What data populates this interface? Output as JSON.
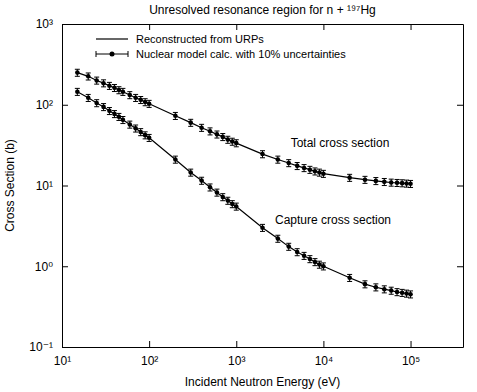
{
  "chart_data": {
    "type": "line",
    "title": "Unresolved resonance region for n + ¹⁹⁷Hg",
    "x_label": "Incident Neutron Energy (eV)",
    "y_label": "Cross Section (b)",
    "log": true,
    "grid": false,
    "legend": "top-left",
    "legend_items": [
      {
        "label": "Reconstructed from URPs",
        "type": "line",
        "line_style": "solid",
        "color": "#000000"
      },
      {
        "label": "Nuclear model calc. with 10% uncertainties",
        "type": "scatter",
        "marker": "circle",
        "color": "#000000"
      }
    ],
    "xlim": [
      10,
      400000
    ],
    "ylim": [
      0.1,
      1000
    ],
    "xticks": [
      {
        "value": 10,
        "label": "10¹"
      },
      {
        "value": 100,
        "label": "10²"
      },
      {
        "value": 1000,
        "label": "10³"
      },
      {
        "value": 10000,
        "label": "10⁴"
      },
      {
        "value": 100000,
        "label": "10⁵"
      }
    ],
    "yticks": [
      {
        "value": 0.1,
        "label": "10⁻¹"
      },
      {
        "value": 1,
        "label": "10⁰"
      },
      {
        "value": 10,
        "label": "10¹"
      },
      {
        "value": 100,
        "label": "10²"
      },
      {
        "value": 1000,
        "label": "10³"
      }
    ],
    "series": [
      {
        "name": "Total cross section",
        "color": "#000000",
        "marker": "circle",
        "line_style": "solid",
        "x": [
          15,
          20,
          25,
          30,
          35,
          40,
          45,
          50,
          60,
          70,
          80,
          90,
          100,
          200,
          300,
          400,
          500,
          600,
          700,
          800,
          900,
          1000,
          2000,
          3000,
          4000,
          5000,
          6000,
          7000,
          8000,
          9000,
          10000,
          20000,
          30000,
          40000,
          50000,
          60000,
          70000,
          80000,
          90000,
          100000
        ],
        "values": [
          250,
          225,
          200,
          185,
          172,
          162,
          152,
          145,
          132,
          122,
          115,
          108,
          103,
          73,
          60,
          52,
          47,
          43,
          40,
          37,
          35,
          33.5,
          24.5,
          21,
          19,
          17.5,
          16.5,
          15.7,
          15,
          14.5,
          14,
          12.5,
          11.8,
          11.4,
          11.1,
          10.9,
          10.8,
          10.7,
          10.6,
          10.5
        ],
        "errors": [
          25,
          22.5,
          20,
          18.5,
          17.2,
          16.2,
          15.2,
          14.5,
          13.2,
          12.2,
          11.5,
          10.8,
          10.3,
          7.3,
          6,
          5.2,
          4.7,
          4.3,
          4,
          3.7,
          3.5,
          3.35,
          2.45,
          2.1,
          1.9,
          1.75,
          1.65,
          1.57,
          1.5,
          1.45,
          1.4,
          1.25,
          1.18,
          1.14,
          1.11,
          1.09,
          1.08,
          1.07,
          1.06,
          1.05
        ]
      },
      {
        "name": "Capture cross section",
        "color": "#000000",
        "marker": "circle",
        "line_style": "solid",
        "x": [
          15,
          20,
          25,
          30,
          35,
          40,
          45,
          50,
          60,
          70,
          80,
          90,
          100,
          200,
          300,
          400,
          500,
          600,
          700,
          800,
          900,
          1000,
          2000,
          3000,
          4000,
          5000,
          6000,
          7000,
          8000,
          9000,
          10000,
          20000,
          30000,
          40000,
          50000,
          60000,
          70000,
          80000,
          90000,
          100000
        ],
        "values": [
          145,
          122,
          105,
          94,
          84,
          77,
          71,
          65,
          57,
          51,
          46,
          42,
          39,
          21,
          14.5,
          11.5,
          9.5,
          8.2,
          7.2,
          6.5,
          5.9,
          5.5,
          3.0,
          2.2,
          1.75,
          1.5,
          1.35,
          1.23,
          1.13,
          1.05,
          1.0,
          0.72,
          0.6,
          0.55,
          0.52,
          0.5,
          0.48,
          0.47,
          0.46,
          0.45
        ],
        "errors": [
          14.5,
          12.2,
          10.5,
          9.4,
          8.4,
          7.7,
          7.1,
          6.5,
          5.7,
          5.1,
          4.6,
          4.2,
          3.9,
          2.1,
          1.45,
          1.15,
          0.95,
          0.82,
          0.72,
          0.65,
          0.59,
          0.55,
          0.3,
          0.22,
          0.175,
          0.15,
          0.135,
          0.123,
          0.113,
          0.105,
          0.1,
          0.072,
          0.06,
          0.055,
          0.052,
          0.05,
          0.048,
          0.047,
          0.046,
          0.045
        ]
      }
    ]
  }
}
